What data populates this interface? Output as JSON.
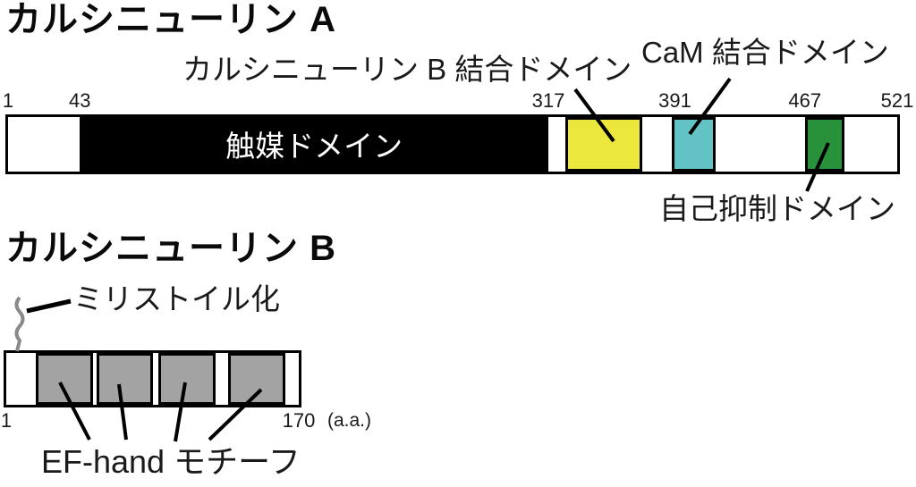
{
  "figure": {
    "section_a": {
      "title": "カルシニューリン A",
      "label_calcineurin_b_binding": "カルシニューリン B 結合ドメイン",
      "label_cam_binding": "CaM 結合ドメイン",
      "label_autoinhibitory": "自己抑制ドメイン"
    },
    "section_b": {
      "title": "カルシニューリン B",
      "label_myristoylation": "ミリストイル化",
      "label_ef_hand": "EF-hand モチーフ",
      "label_aa_unit": "(a.a.)"
    }
  },
  "colors": {
    "catalytic": "#000000",
    "calcineurin_b_binding": "#ece73c",
    "cam_binding": "#63c3c4",
    "autoinhibitory": "#27923a",
    "ef_hand": "#a3a3a3",
    "squiggle": "#8a8a8a",
    "leader_line": "#000000"
  },
  "proteins": [
    {
      "name": "calcineurin-a",
      "start": 1,
      "end": 521,
      "ticks": [
        1,
        43,
        317,
        391,
        467,
        521
      ],
      "segments": [
        {
          "name": "catalytic-domain",
          "start": 43,
          "end": 317,
          "color": "#000000",
          "border": false,
          "label": "触媒ドメイン",
          "label_color": "#ffffff"
        },
        {
          "name": "calcineurin-b-binding-domain",
          "start": 327,
          "end": 372,
          "color": "#ece73c",
          "border": true
        },
        {
          "name": "cam-binding-domain",
          "start": 389,
          "end": 415,
          "color": "#63c3c4",
          "border": true
        },
        {
          "name": "autoinhibitory-domain",
          "start": 467,
          "end": 490,
          "color": "#27923a",
          "border": true
        }
      ]
    },
    {
      "name": "calcineurin-b",
      "start": 1,
      "end": 170,
      "ticks": [
        1,
        170
      ],
      "segments": [
        {
          "name": "ef-hand-motif-1",
          "start": 18,
          "end": 51,
          "color": "#a3a3a3",
          "border": true
        },
        {
          "name": "ef-hand-motif-2",
          "start": 53,
          "end": 86,
          "color": "#a3a3a3",
          "border": true
        },
        {
          "name": "ef-hand-motif-3",
          "start": 89,
          "end": 122,
          "color": "#a3a3a3",
          "border": true
        },
        {
          "name": "ef-hand-motif-4",
          "start": 129,
          "end": 162,
          "color": "#a3a3a3",
          "border": true
        }
      ]
    }
  ]
}
